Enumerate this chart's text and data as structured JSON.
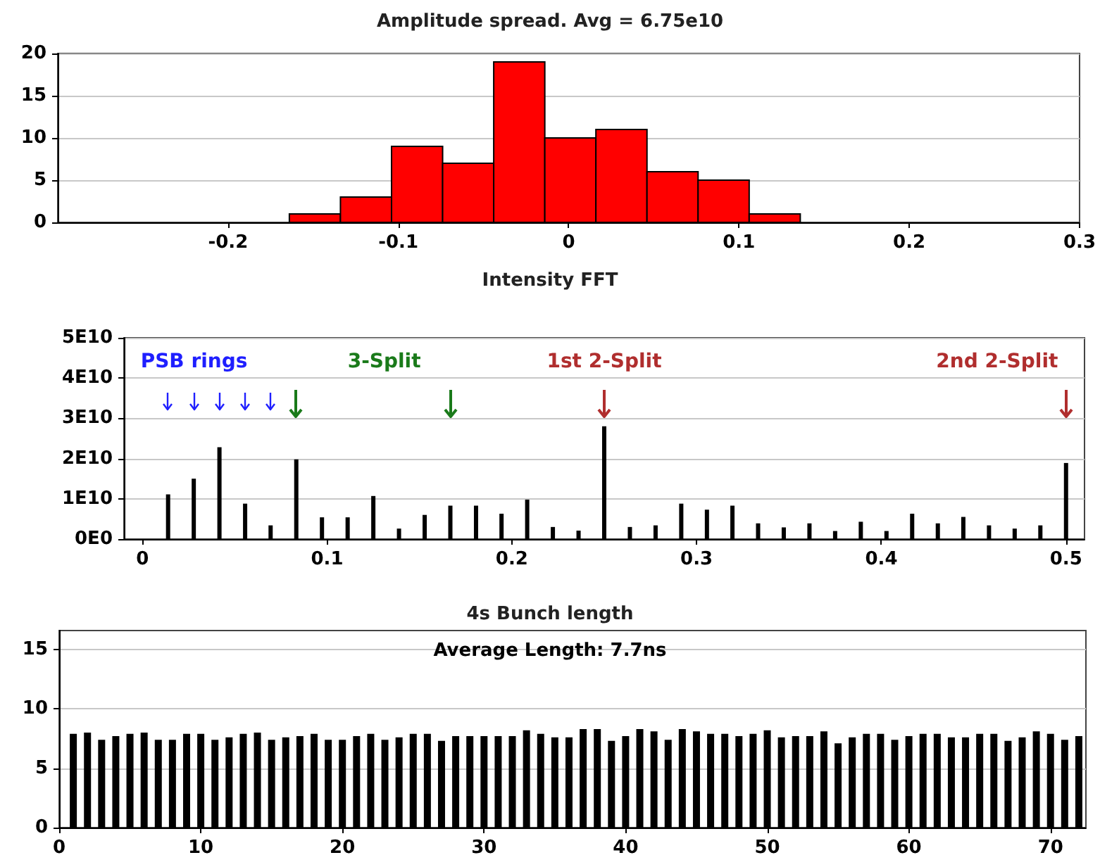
{
  "chart_data": [
    {
      "type": "histogram",
      "title": "Amplitude spread. Avg = 6.75e10",
      "bins": [
        -0.164,
        -0.134,
        -0.104,
        -0.074,
        -0.044,
        -0.014,
        0.016,
        0.046,
        0.076,
        0.106,
        0.136
      ],
      "values": [
        1,
        3,
        9,
        7,
        19,
        10,
        11,
        6,
        5,
        1
      ],
      "color": "#ff0000",
      "xlim": [
        -0.3,
        0.3
      ],
      "xticks": [
        -0.2,
        -0.1,
        0,
        0.1,
        0.2,
        0.3
      ],
      "ylim": [
        0,
        20
      ],
      "yticks": [
        0,
        5,
        10,
        15,
        20
      ],
      "grid": "y"
    },
    {
      "type": "bar",
      "title": "Intensity FFT",
      "x": [
        0.0139,
        0.0278,
        0.0417,
        0.0556,
        0.0694,
        0.0833,
        0.0972,
        0.1111,
        0.125,
        0.1389,
        0.1528,
        0.1667,
        0.1806,
        0.1944,
        0.2083,
        0.2222,
        0.2361,
        0.25,
        0.2639,
        0.2778,
        0.2917,
        0.3056,
        0.3194,
        0.3333,
        0.3472,
        0.3611,
        0.375,
        0.3889,
        0.4028,
        0.4167,
        0.4306,
        0.4444,
        0.4583,
        0.4722,
        0.4861,
        0.5
      ],
      "values": [
        11100000000,
        15000000000,
        22800000000,
        8800000000,
        3400000000,
        19800000000,
        5400000000,
        5400000000,
        10700000000,
        2600000000,
        6000000000,
        8300000000,
        8300000000,
        6300000000,
        9800000000,
        3000000000,
        2100000000,
        28000000000,
        3000000000,
        3400000000,
        8800000000,
        7300000000,
        8300000000,
        3900000000,
        2900000000,
        3900000000,
        2000000000,
        4300000000,
        2000000000,
        6300000000,
        3900000000,
        5500000000,
        3400000000,
        2600000000,
        3400000000,
        18900000000
      ],
      "color": "#000000",
      "xlim": [
        -0.01,
        0.51
      ],
      "xticks": [
        0,
        0.1,
        0.2,
        0.3,
        0.4,
        0.5
      ],
      "ylim": [
        0,
        50000000000
      ],
      "yticks": [
        {
          "value": 0,
          "label": "0E0"
        },
        {
          "value": 10000000000,
          "label": "1E10"
        },
        {
          "value": 20000000000,
          "label": "2E10"
        },
        {
          "value": 30000000000,
          "label": "3E10"
        },
        {
          "value": 40000000000,
          "label": "4E10"
        },
        {
          "value": 50000000000,
          "label": "5E10"
        }
      ],
      "grid": "y",
      "annotations": [
        "PSB rings",
        "3-Split",
        "1st 2-Split",
        "2nd 2-Split"
      ]
    },
    {
      "type": "bar",
      "title": "4s Bunch length",
      "x": [
        1,
        2,
        3,
        4,
        5,
        6,
        7,
        8,
        9,
        10,
        11,
        12,
        13,
        14,
        15,
        16,
        17,
        18,
        19,
        20,
        21,
        22,
        23,
        24,
        25,
        26,
        27,
        28,
        29,
        30,
        31,
        32,
        33,
        34,
        35,
        36,
        37,
        38,
        39,
        40,
        41,
        42,
        43,
        44,
        45,
        46,
        47,
        48,
        49,
        50,
        51,
        52,
        53,
        54,
        55,
        56,
        57,
        58,
        59,
        60,
        61,
        62,
        63,
        64,
        65,
        66,
        67,
        68,
        69,
        70,
        71,
        72
      ],
      "values": [
        7.9,
        8.0,
        7.4,
        7.7,
        7.9,
        8.0,
        7.4,
        7.4,
        7.9,
        7.9,
        7.4,
        7.6,
        7.9,
        8.0,
        7.4,
        7.6,
        7.7,
        7.9,
        7.4,
        7.4,
        7.7,
        7.9,
        7.4,
        7.6,
        7.9,
        7.9,
        7.3,
        7.7,
        7.7,
        7.7,
        7.7,
        7.7,
        8.2,
        7.9,
        7.6,
        7.6,
        8.3,
        8.3,
        7.3,
        7.7,
        8.3,
        8.1,
        7.4,
        8.3,
        8.1,
        7.9,
        7.9,
        7.7,
        7.9,
        8.2,
        7.6,
        7.7,
        7.7,
        8.1,
        7.1,
        7.6,
        7.9,
        7.9,
        7.4,
        7.7,
        7.9,
        7.9,
        7.6,
        7.6,
        7.9,
        7.9,
        7.3,
        7.6,
        8.1,
        7.9,
        7.4,
        7.7
      ],
      "color": "#000000",
      "xlim": [
        0,
        72.5
      ],
      "xticks": [
        0,
        10,
        20,
        30,
        40,
        50,
        60,
        70
      ],
      "ylim": [
        0,
        16.6
      ],
      "yticks": [
        0,
        5,
        10,
        15
      ],
      "grid": "y",
      "annotations": [
        "Average Length: 7.7ns"
      ]
    }
  ]
}
